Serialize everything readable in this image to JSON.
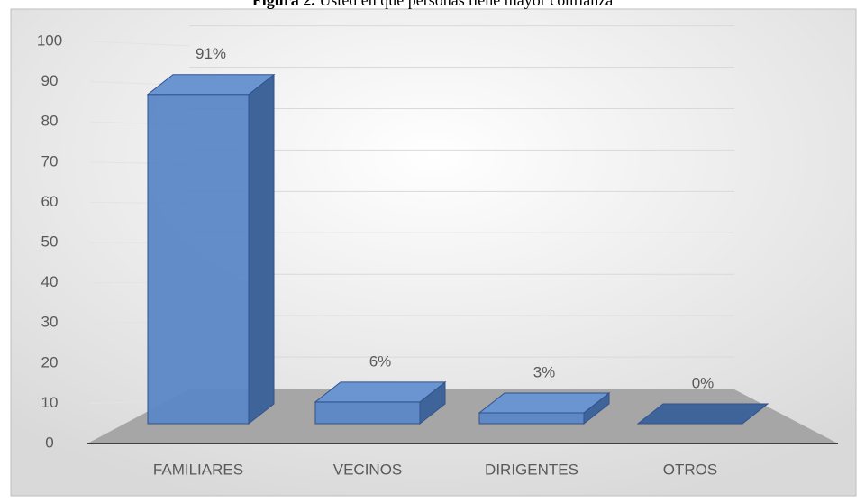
{
  "chart_data": {
    "type": "bar3d",
    "figure_label": "Figura 2.",
    "title": "Usted en que personas tiene mayor confianza",
    "categories": [
      "FAMILIARES",
      "VECINOS",
      "DIRIGENTES",
      "OTROS"
    ],
    "values": [
      91,
      6,
      3,
      0
    ],
    "value_labels": [
      "91%",
      "6%",
      "3%",
      "0%"
    ],
    "color": "#5b87c5",
    "ylim": [
      0,
      100
    ],
    "yticks": [
      0,
      10,
      20,
      30,
      40,
      50,
      60,
      70,
      80,
      90,
      100
    ],
    "grid": true
  }
}
